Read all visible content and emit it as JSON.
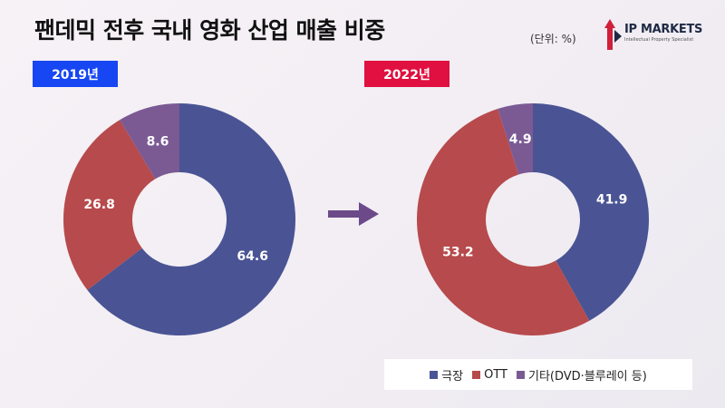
{
  "title": "팬데믹 전후 국내 영화 산업 매출 비중",
  "unit": "(단위: %)",
  "logo": {
    "name": "IP MARKETS",
    "tagline": "Intellectual Property Specialist"
  },
  "colors": {
    "theater": "#4a5494",
    "ott": "#b74a4c",
    "other": "#7b5a94",
    "badge_2019": "#1747f2",
    "badge_2022": "#e01040",
    "arrow": "#6c4a8a"
  },
  "chart_data": [
    {
      "type": "pie",
      "title": "2019년",
      "categories": [
        "극장",
        "OTT",
        "기타(DVD·블루레이 등)"
      ],
      "values": [
        64.6,
        26.8,
        8.6
      ],
      "value_labels": [
        "64.6",
        "26.8",
        "8.6"
      ]
    },
    {
      "type": "pie",
      "title": "2022년",
      "categories": [
        "극장",
        "OTT",
        "기타(DVD·블루레이 등)"
      ],
      "values": [
        41.9,
        53.2,
        4.9
      ],
      "value_labels": [
        "41.9",
        "53.2",
        "4.9"
      ]
    }
  ],
  "legend": [
    {
      "label": "극장",
      "color": "#4a5494"
    },
    {
      "label": "OTT",
      "color": "#b74a4c"
    },
    {
      "label": "기타(DVD·블루레이 등)",
      "color": "#7b5a94"
    }
  ]
}
